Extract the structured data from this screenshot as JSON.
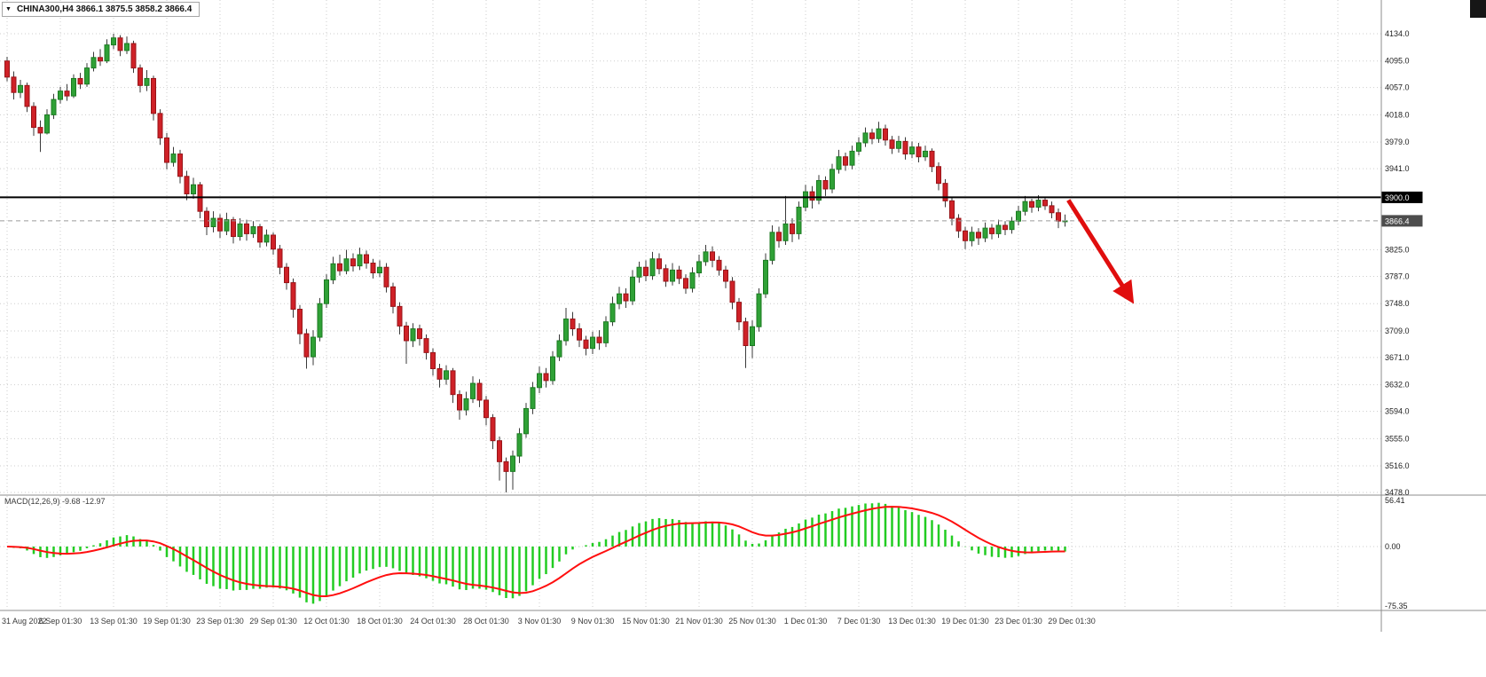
{
  "header": {
    "symbol_text": "CHINA300,H4 3866.1 3875.5 3858.2 3866.4",
    "dropdown_icon": "chevron-down-icon"
  },
  "colors": {
    "grid": "#cdcdcd",
    "bull": "#2fa136",
    "bull_stroke": "#1c7a22",
    "bear": "#cf2127",
    "bear_stroke": "#971418",
    "wick": "#3a3a3a",
    "hline": "#000000",
    "bid_line": "#9a9a9a",
    "bid_label_bg": "#4d4d4d",
    "macd_hist": "#22cc22",
    "macd_signal": "#ff0f0f",
    "arrow": "#e00e0e",
    "axis_text": "#1c1c1c",
    "time_text": "#3a3a3a",
    "separator": "#8c8c8c"
  },
  "chart_data": {
    "type": "candlestick",
    "title": "CHINA300,H4",
    "symbol": "CHINA300",
    "timeframe": "H4",
    "ohlc_last": {
      "open": 3866.1,
      "high": 3875.5,
      "low": 3858.2,
      "close": 3866.4
    },
    "price_axis": {
      "min": 3478.0,
      "max": 4134.0,
      "ticks": [
        "4134.0",
        "4095.0",
        "4057.0",
        "4018.0",
        "3979.0",
        "3941.0",
        "3825.0",
        "3787.0",
        "3748.0",
        "3709.0",
        "3671.0",
        "3632.0",
        "3594.0",
        "3555.0",
        "3516.0",
        "3478.0"
      ],
      "hline": {
        "price": 3900.0,
        "label": "3900.0"
      },
      "bid": {
        "price": 3866.4,
        "label": "3866.4"
      }
    },
    "time_axis": {
      "labels": [
        {
          "text": "31 Aug 2022",
          "k": 0
        },
        {
          "text": "6 Sep 01:30",
          "k": 8
        },
        {
          "text": "13 Sep 01:30",
          "k": 16
        },
        {
          "text": "19 Sep 01:30",
          "k": 24
        },
        {
          "text": "23 Sep 01:30",
          "k": 32
        },
        {
          "text": "29 Sep 01:30",
          "k": 40
        },
        {
          "text": "12 Oct 01:30",
          "k": 48
        },
        {
          "text": "18 Oct 01:30",
          "k": 56
        },
        {
          "text": "24 Oct 01:30",
          "k": 64
        },
        {
          "text": "28 Oct 01:30",
          "k": 72
        },
        {
          "text": "3 Nov 01:30",
          "k": 80
        },
        {
          "text": "9 Nov 01:30",
          "k": 88
        },
        {
          "text": "15 Nov 01:30",
          "k": 96
        },
        {
          "text": "21 Nov 01:30",
          "k": 104
        },
        {
          "text": "25 Nov 01:30",
          "k": 112
        },
        {
          "text": "1 Dec 01:30",
          "k": 120
        },
        {
          "text": "7 Dec 01:30",
          "k": 128
        },
        {
          "text": "13 Dec 01:30",
          "k": 136
        },
        {
          "text": "19 Dec 01:30",
          "k": 144
        },
        {
          "text": "23 Dec 01:30",
          "k": 152
        },
        {
          "text": "29 Dec 01:30",
          "k": 160
        }
      ]
    },
    "candles": [
      [
        4095,
        4101,
        4066,
        4072
      ],
      [
        4072,
        4080,
        4040,
        4050
      ],
      [
        4050,
        4068,
        4042,
        4060
      ],
      [
        4060,
        4064,
        4022,
        4030
      ],
      [
        4030,
        4036,
        3988,
        4000
      ],
      [
        4000,
        4010,
        3965,
        3992
      ],
      [
        3992,
        4026,
        3990,
        4018
      ],
      [
        4018,
        4048,
        4012,
        4040
      ],
      [
        4040,
        4058,
        4034,
        4052
      ],
      [
        4052,
        4062,
        4038,
        4045
      ],
      [
        4045,
        4076,
        4042,
        4070
      ],
      [
        4070,
        4078,
        4055,
        4062
      ],
      [
        4062,
        4092,
        4058,
        4085
      ],
      [
        4085,
        4108,
        4080,
        4100
      ],
      [
        4100,
        4112,
        4088,
        4095
      ],
      [
        4095,
        4126,
        4092,
        4118
      ],
      [
        4118,
        4134,
        4112,
        4128
      ],
      [
        4128,
        4132,
        4102,
        4110
      ],
      [
        4110,
        4130,
        4105,
        4120
      ],
      [
        4120,
        4124,
        4078,
        4085
      ],
      [
        4085,
        4090,
        4050,
        4060
      ],
      [
        4060,
        4082,
        4052,
        4070
      ],
      [
        4070,
        4074,
        4010,
        4020
      ],
      [
        4020,
        4026,
        3975,
        3985
      ],
      [
        3985,
        3992,
        3940,
        3950
      ],
      [
        3950,
        3972,
        3944,
        3962
      ],
      [
        3962,
        3968,
        3920,
        3930
      ],
      [
        3930,
        3938,
        3896,
        3905
      ],
      [
        3905,
        3928,
        3898,
        3918
      ],
      [
        3918,
        3922,
        3870,
        3880
      ],
      [
        3880,
        3886,
        3846,
        3858
      ],
      [
        3858,
        3880,
        3850,
        3870
      ],
      [
        3870,
        3876,
        3842,
        3852
      ],
      [
        3852,
        3878,
        3846,
        3868
      ],
      [
        3868,
        3872,
        3834,
        3844
      ],
      [
        3844,
        3870,
        3838,
        3862
      ],
      [
        3862,
        3868,
        3838,
        3848
      ],
      [
        3848,
        3866,
        3842,
        3858
      ],
      [
        3858,
        3862,
        3828,
        3836
      ],
      [
        3836,
        3854,
        3830,
        3846
      ],
      [
        3846,
        3850,
        3818,
        3826
      ],
      [
        3826,
        3832,
        3790,
        3800
      ],
      [
        3800,
        3806,
        3768,
        3778
      ],
      [
        3778,
        3784,
        3728,
        3740
      ],
      [
        3740,
        3746,
        3690,
        3705
      ],
      [
        3705,
        3712,
        3655,
        3672
      ],
      [
        3672,
        3710,
        3660,
        3700
      ],
      [
        3700,
        3756,
        3694,
        3748
      ],
      [
        3748,
        3790,
        3742,
        3782
      ],
      [
        3782,
        3815,
        3776,
        3805
      ],
      [
        3805,
        3818,
        3788,
        3795
      ],
      [
        3795,
        3825,
        3790,
        3812
      ],
      [
        3812,
        3820,
        3794,
        3802
      ],
      [
        3802,
        3828,
        3796,
        3818
      ],
      [
        3818,
        3824,
        3798,
        3806
      ],
      [
        3806,
        3812,
        3784,
        3792
      ],
      [
        3792,
        3810,
        3786,
        3800
      ],
      [
        3800,
        3806,
        3764,
        3772
      ],
      [
        3772,
        3778,
        3734,
        3744
      ],
      [
        3744,
        3750,
        3704,
        3716
      ],
      [
        3716,
        3722,
        3662,
        3695
      ],
      [
        3695,
        3720,
        3686,
        3712
      ],
      [
        3712,
        3718,
        3688,
        3698
      ],
      [
        3698,
        3704,
        3668,
        3678
      ],
      [
        3678,
        3684,
        3645,
        3655
      ],
      [
        3655,
        3662,
        3628,
        3640
      ],
      [
        3640,
        3660,
        3632,
        3652
      ],
      [
        3652,
        3656,
        3606,
        3618
      ],
      [
        3618,
        3624,
        3582,
        3596
      ],
      [
        3596,
        3622,
        3588,
        3612
      ],
      [
        3612,
        3644,
        3606,
        3634
      ],
      [
        3634,
        3640,
        3600,
        3610
      ],
      [
        3610,
        3616,
        3574,
        3585
      ],
      [
        3585,
        3590,
        3540,
        3552
      ],
      [
        3552,
        3558,
        3495,
        3522
      ],
      [
        3522,
        3528,
        3478,
        3508
      ],
      [
        3508,
        3538,
        3482,
        3530
      ],
      [
        3530,
        3570,
        3520,
        3562
      ],
      [
        3562,
        3606,
        3556,
        3598
      ],
      [
        3598,
        3636,
        3590,
        3628
      ],
      [
        3628,
        3658,
        3620,
        3648
      ],
      [
        3648,
        3656,
        3628,
        3638
      ],
      [
        3638,
        3680,
        3632,
        3672
      ],
      [
        3672,
        3704,
        3666,
        3695
      ],
      [
        3695,
        3742,
        3688,
        3726
      ],
      [
        3726,
        3736,
        3702,
        3712
      ],
      [
        3712,
        3720,
        3686,
        3696
      ],
      [
        3696,
        3702,
        3674,
        3684
      ],
      [
        3684,
        3708,
        3676,
        3700
      ],
      [
        3700,
        3710,
        3682,
        3692
      ],
      [
        3692,
        3730,
        3686,
        3722
      ],
      [
        3722,
        3758,
        3716,
        3748
      ],
      [
        3748,
        3772,
        3740,
        3762
      ],
      [
        3762,
        3770,
        3742,
        3752
      ],
      [
        3752,
        3796,
        3746,
        3786
      ],
      [
        3786,
        3808,
        3778,
        3800
      ],
      [
        3800,
        3810,
        3780,
        3788
      ],
      [
        3788,
        3822,
        3782,
        3812
      ],
      [
        3812,
        3820,
        3790,
        3798
      ],
      [
        3798,
        3804,
        3772,
        3780
      ],
      [
        3780,
        3806,
        3774,
        3796
      ],
      [
        3796,
        3802,
        3776,
        3784
      ],
      [
        3784,
        3790,
        3762,
        3770
      ],
      [
        3770,
        3800,
        3764,
        3792
      ],
      [
        3792,
        3818,
        3786,
        3808
      ],
      [
        3808,
        3832,
        3802,
        3822
      ],
      [
        3822,
        3830,
        3800,
        3810
      ],
      [
        3810,
        3816,
        3788,
        3796
      ],
      [
        3796,
        3802,
        3770,
        3780
      ],
      [
        3780,
        3786,
        3740,
        3750
      ],
      [
        3750,
        3756,
        3710,
        3722
      ],
      [
        3722,
        3728,
        3656,
        3688
      ],
      [
        3688,
        3724,
        3670,
        3715
      ],
      [
        3715,
        3770,
        3708,
        3762
      ],
      [
        3762,
        3820,
        3756,
        3810
      ],
      [
        3810,
        3860,
        3804,
        3850
      ],
      [
        3850,
        3858,
        3828,
        3838
      ],
      [
        3838,
        3902,
        3832,
        3862
      ],
      [
        3862,
        3870,
        3836,
        3848
      ],
      [
        3848,
        3894,
        3840,
        3886
      ],
      [
        3886,
        3918,
        3880,
        3908
      ],
      [
        3908,
        3916,
        3884,
        3896
      ],
      [
        3896,
        3932,
        3890,
        3924
      ],
      [
        3924,
        3930,
        3902,
        3912
      ],
      [
        3912,
        3948,
        3906,
        3940
      ],
      [
        3940,
        3968,
        3934,
        3958
      ],
      [
        3958,
        3964,
        3938,
        3946
      ],
      [
        3946,
        3974,
        3940,
        3966
      ],
      [
        3966,
        3986,
        3960,
        3978
      ],
      [
        3978,
        4000,
        3972,
        3992
      ],
      [
        3992,
        3998,
        3976,
        3984
      ],
      [
        3984,
        4008,
        3978,
        3998
      ],
      [
        3998,
        4004,
        3974,
        3982
      ],
      [
        3982,
        3988,
        3962,
        3970
      ],
      [
        3970,
        3988,
        3964,
        3980
      ],
      [
        3980,
        3986,
        3954,
        3962
      ],
      [
        3962,
        3980,
        3956,
        3972
      ],
      [
        3972,
        3978,
        3950,
        3958
      ],
      [
        3958,
        3974,
        3952,
        3966
      ],
      [
        3966,
        3970,
        3936,
        3944
      ],
      [
        3944,
        3950,
        3910,
        3920
      ],
      [
        3920,
        3926,
        3886,
        3895
      ],
      [
        3895,
        3900,
        3860,
        3870
      ],
      [
        3870,
        3876,
        3842,
        3852
      ],
      [
        3852,
        3858,
        3826,
        3838
      ],
      [
        3838,
        3858,
        3830,
        3850
      ],
      [
        3850,
        3856,
        3832,
        3842
      ],
      [
        3842,
        3864,
        3836,
        3856
      ],
      [
        3856,
        3862,
        3840,
        3848
      ],
      [
        3848,
        3868,
        3842,
        3860
      ],
      [
        3860,
        3866,
        3846,
        3854
      ],
      [
        3854,
        3872,
        3848,
        3866
      ],
      [
        3866,
        3888,
        3860,
        3880
      ],
      [
        3880,
        3902,
        3874,
        3894
      ],
      [
        3894,
        3898,
        3878,
        3886
      ],
      [
        3886,
        3903,
        3880,
        3896
      ],
      [
        3896,
        3900,
        3882,
        3888
      ],
      [
        3888,
        3894,
        3870,
        3878
      ],
      [
        3878,
        3884,
        3856,
        3866.1
      ],
      [
        3866.1,
        3875.5,
        3858.2,
        3866.4
      ]
    ],
    "macd": {
      "display_label": "MACD(12,26,9) -9.68 -12.97",
      "params": [
        12,
        26,
        9
      ],
      "main_value": -9.68,
      "signal_value": -12.97,
      "axis": {
        "top": "56.41",
        "zero": "0.00",
        "bottom": "-75.35"
      }
    },
    "annotations": {
      "arrow": {
        "from_k": 159.5,
        "from_price": 3896,
        "to_k": 168,
        "to_price": 3768
      }
    }
  }
}
